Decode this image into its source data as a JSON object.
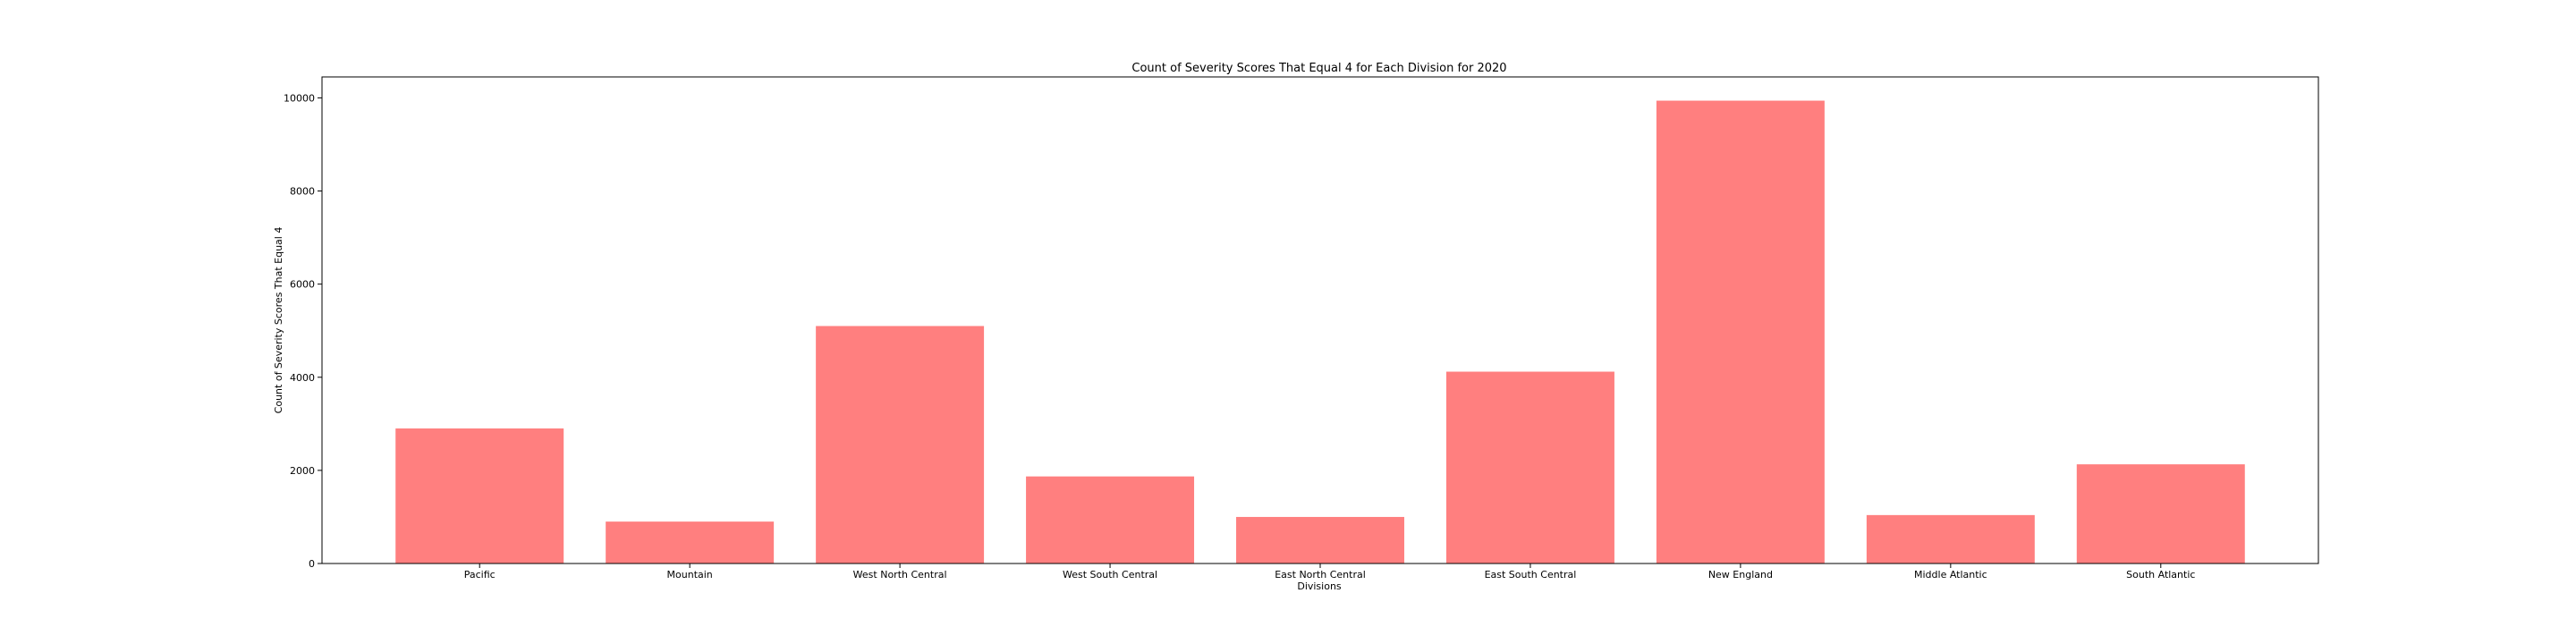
{
  "chart_data": {
    "type": "bar",
    "title": "Count of Severity Scores That Equal 4 for Each Division for 2020",
    "xlabel": "Divisions",
    "ylabel": "Count of Severity Scores That Equal 4",
    "categories": [
      "Pacific",
      "Mountain",
      "West North Central",
      "West South Central",
      "East North Central",
      "East South Central",
      "New England",
      "Middle Atlantic",
      "South Atlantic"
    ],
    "values": [
      2900,
      900,
      5100,
      1870,
      1000,
      4120,
      9940,
      1040,
      2130
    ],
    "yticks": [
      0,
      2000,
      4000,
      6000,
      8000,
      10000
    ],
    "ylim": [
      0,
      10450
    ],
    "bar_color": "#ff7f7f",
    "grid": false,
    "legend": "none"
  }
}
